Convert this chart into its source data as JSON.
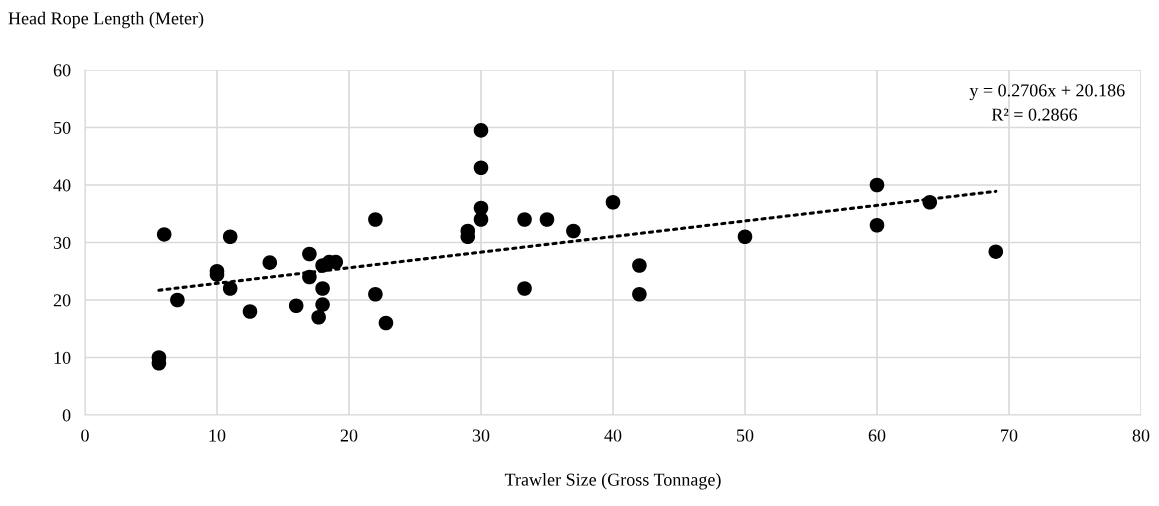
{
  "chart_data": {
    "type": "scatter",
    "xlabel": "Trawler Size (Gross Tonnage)",
    "ylabel": "Head Rope Length (Meter)",
    "xlim": [
      0,
      80
    ],
    "xticks": [
      0,
      10,
      20,
      30,
      40,
      50,
      60,
      70,
      80
    ],
    "ylim": [
      0,
      60
    ],
    "yticks": [
      0,
      10,
      20,
      30,
      40,
      50,
      60
    ],
    "grid": true,
    "marker": "circle",
    "series": [
      {
        "color": "#000000",
        "x": [
          5.6,
          5.6,
          6,
          7,
          10,
          10,
          11,
          11,
          12.5,
          14,
          16,
          17,
          17,
          17.7,
          18,
          18,
          18,
          18.5,
          19,
          22,
          22,
          22.8,
          29,
          29,
          30,
          30,
          30,
          30,
          33.3,
          33.3,
          35,
          37,
          40,
          42,
          42,
          50,
          60,
          60,
          64,
          69
        ],
        "values": [
          10,
          9,
          31.4,
          20,
          25,
          24.4,
          31,
          22,
          18,
          26.5,
          19,
          28,
          24,
          17,
          26,
          22,
          19.2,
          26.6,
          26.6,
          34,
          21,
          16,
          32,
          31,
          49.5,
          43,
          36,
          34,
          34,
          22,
          34,
          32,
          37,
          26,
          21,
          31,
          40,
          33,
          37,
          28.4
        ]
      },
      {
        "type": "line",
        "color": "#000000",
        "line_style": "dotted",
        "marker": "none",
        "x": [
          5.6,
          69
        ],
        "values": [
          21.7,
          38.9
        ]
      }
    ],
    "annotations": [
      "y = 0.2706x + 20.186",
      "R² = 0.2866"
    ]
  }
}
